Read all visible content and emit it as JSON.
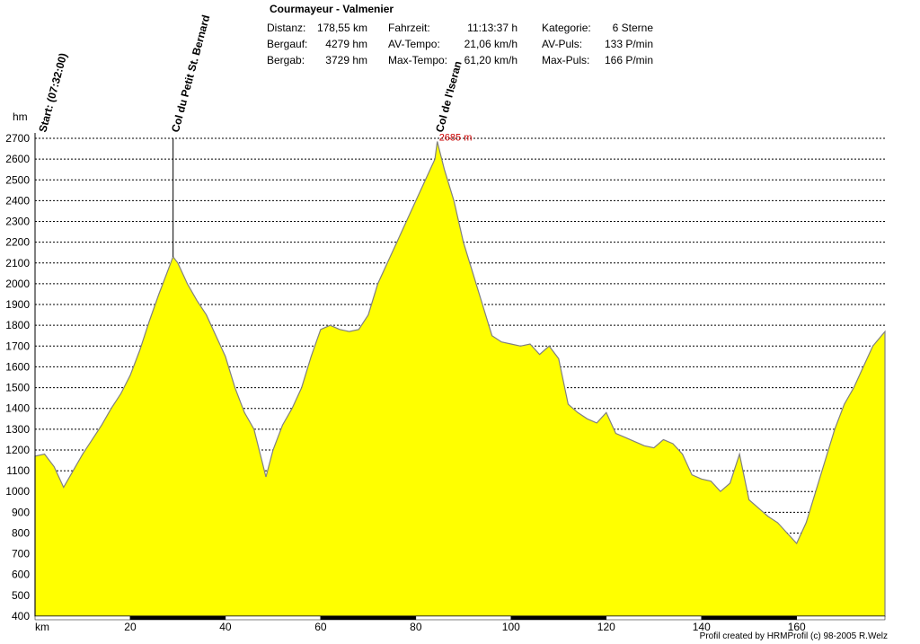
{
  "title": "Courmayeur - Valmenier",
  "stats": {
    "col1": [
      {
        "label": "Distanz:",
        "value": "178,55 km"
      },
      {
        "label": "Bergauf:",
        "value": "4279 hm"
      },
      {
        "label": "Bergab:",
        "value": "3729 hm"
      }
    ],
    "col2": [
      {
        "label": "Fahrzeit:",
        "value": "11:13:37 h"
      },
      {
        "label": "AV-Tempo:",
        "value": "21,06 km/h"
      },
      {
        "label": "Max-Tempo:",
        "value": "61,20 km/h"
      }
    ],
    "col3": [
      {
        "label": "Kategorie:",
        "value": "6 Sterne"
      },
      {
        "label": "AV-Puls:",
        "value": "133 P/min"
      },
      {
        "label": "Max-Puls:",
        "value": "166 P/min"
      }
    ]
  },
  "credit": "Profil created by HRMProfil (c) 98-2005 R.Welz",
  "colors": {
    "fill": "#ffff00",
    "outline": "#808080",
    "grid": "#000000"
  },
  "chart_data": {
    "type": "area",
    "xlabel": "km",
    "ylabel": "hm",
    "xlim": [
      0,
      178.55
    ],
    "ylim": [
      400,
      2700
    ],
    "x_ticks": [
      20,
      40,
      60,
      80,
      100,
      120,
      140,
      160
    ],
    "y_ticks": [
      400,
      500,
      600,
      700,
      800,
      900,
      1000,
      1100,
      1200,
      1300,
      1400,
      1500,
      1600,
      1700,
      1800,
      1900,
      2000,
      2100,
      2200,
      2300,
      2400,
      2500,
      2600,
      2700
    ],
    "grid": true,
    "series": [
      {
        "x": [
          0,
          2,
          4,
          6,
          8,
          10,
          12,
          14,
          16,
          18,
          20,
          22,
          24,
          26,
          28,
          29,
          30,
          32,
          34,
          36,
          38,
          40,
          42,
          44,
          46,
          48.5,
          50,
          52,
          54,
          56,
          58,
          60,
          62,
          64,
          66,
          68,
          70,
          72,
          74,
          76,
          78,
          80,
          82,
          84,
          84.5,
          86,
          88,
          90,
          92,
          94,
          96,
          98,
          100,
          102,
          104,
          106,
          108,
          110,
          112,
          114,
          116,
          118,
          120,
          122,
          124,
          126,
          128,
          130,
          132,
          134,
          136,
          138,
          140,
          142,
          144,
          146,
          148,
          150,
          152,
          154,
          156,
          158,
          160,
          162,
          164,
          166,
          168,
          170,
          172,
          174,
          176,
          178.55
        ],
        "y": [
          1170,
          1180,
          1120,
          1020,
          1100,
          1180,
          1250,
          1320,
          1400,
          1470,
          1560,
          1680,
          1820,
          1950,
          2070,
          2130,
          2100,
          2000,
          1920,
          1850,
          1750,
          1650,
          1500,
          1380,
          1300,
          1070,
          1200,
          1320,
          1400,
          1500,
          1650,
          1780,
          1800,
          1780,
          1770,
          1780,
          1850,
          2000,
          2100,
          2200,
          2300,
          2400,
          2500,
          2600,
          2685,
          2550,
          2400,
          2200,
          2050,
          1900,
          1750,
          1720,
          1710,
          1700,
          1710,
          1660,
          1700,
          1640,
          1420,
          1380,
          1350,
          1330,
          1380,
          1280,
          1260,
          1240,
          1220,
          1210,
          1250,
          1230,
          1180,
          1080,
          1060,
          1050,
          1000,
          1040,
          1180,
          960,
          920,
          880,
          850,
          800,
          750,
          850,
          1000,
          1150,
          1300,
          1420,
          1500,
          1600,
          1700,
          1770
        ]
      }
    ],
    "annotations": [
      {
        "x": 0,
        "label": "Start: (07:32:00)"
      },
      {
        "x": 29,
        "label": "Col du Petit St. Bernard"
      },
      {
        "x": 84.5,
        "label": "Col de l'Iseran"
      }
    ],
    "max_label": "2685 m"
  }
}
